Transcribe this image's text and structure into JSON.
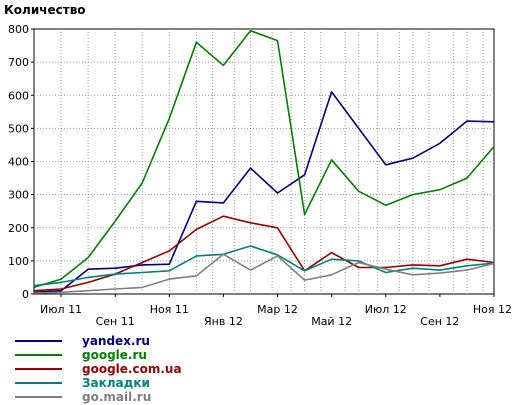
{
  "chart_data": {
    "type": "line",
    "title": "Количество",
    "xlabel": "",
    "ylabel": "",
    "ylim": [
      0,
      800
    ],
    "yticks": [
      0,
      100,
      200,
      300,
      400,
      500,
      600,
      700,
      800
    ],
    "grid": true,
    "legend_position": "bottom-left",
    "x": [
      "2011-06",
      "2011-07",
      "2011-08",
      "2011-09",
      "2011-10",
      "2011-11",
      "2011-12",
      "2012-01",
      "2012-02",
      "2012-03",
      "2012-04",
      "2012-05",
      "2012-06",
      "2012-07",
      "2012-08",
      "2012-09",
      "2012-10",
      "2012-11"
    ],
    "x_tick_labels": [
      {
        "x": "2011-07",
        "label": "Июл 11",
        "row": 1
      },
      {
        "x": "2011-09",
        "label": "Сен 11",
        "row": 2
      },
      {
        "x": "2011-11",
        "label": "Ноя 11",
        "row": 1
      },
      {
        "x": "2012-01",
        "label": "Янв 12",
        "row": 2
      },
      {
        "x": "2012-03",
        "label": "Мар 12",
        "row": 1
      },
      {
        "x": "2012-05",
        "label": "Май 12",
        "row": 2
      },
      {
        "x": "2012-07",
        "label": "Июл 12",
        "row": 1
      },
      {
        "x": "2012-09",
        "label": "Сен 12",
        "row": 2
      },
      {
        "x": "2012-11",
        "label": "Ноя 12",
        "row": 1
      }
    ],
    "x_points": [
      0,
      1,
      2,
      3,
      4,
      5,
      6,
      6.6,
      7.4,
      8,
      8.8,
      9.5,
      10,
      10.6,
      11.5,
      12,
      12.7,
      13.5,
      14,
      14.6,
      15.5,
      16,
      16.6,
      17
    ],
    "series": [
      {
        "name": "yandex.ru",
        "color": "#000080",
        "values": [
          5,
          10,
          75,
          78,
          88,
          90,
          280,
          275,
          380,
          305,
          360,
          610,
          500,
          390,
          410,
          455,
          522,
          520
        ]
      },
      {
        "name": "google.ru",
        "color": "#008000",
        "values": [
          20,
          45,
          110,
          220,
          335,
          530,
          760,
          690,
          795,
          765,
          240,
          405,
          310,
          268,
          300,
          315,
          350,
          445
        ]
      },
      {
        "name": "google.com.ua",
        "color": "#990000",
        "values": [
          10,
          15,
          35,
          60,
          95,
          130,
          195,
          235,
          215,
          200,
          70,
          125,
          80,
          80,
          88,
          85,
          105,
          95
        ]
      },
      {
        "name": "Закладки",
        "color": "#008080",
        "values": [
          25,
          35,
          50,
          60,
          65,
          70,
          115,
          120,
          145,
          118,
          70,
          105,
          100,
          65,
          78,
          72,
          85,
          93
        ]
      },
      {
        "name": "go.mail.ru",
        "color": "#808080",
        "values": [
          3,
          5,
          10,
          15,
          20,
          45,
          55,
          120,
          72,
          115,
          42,
          58,
          95,
          75,
          58,
          63,
          72,
          92
        ]
      }
    ]
  }
}
